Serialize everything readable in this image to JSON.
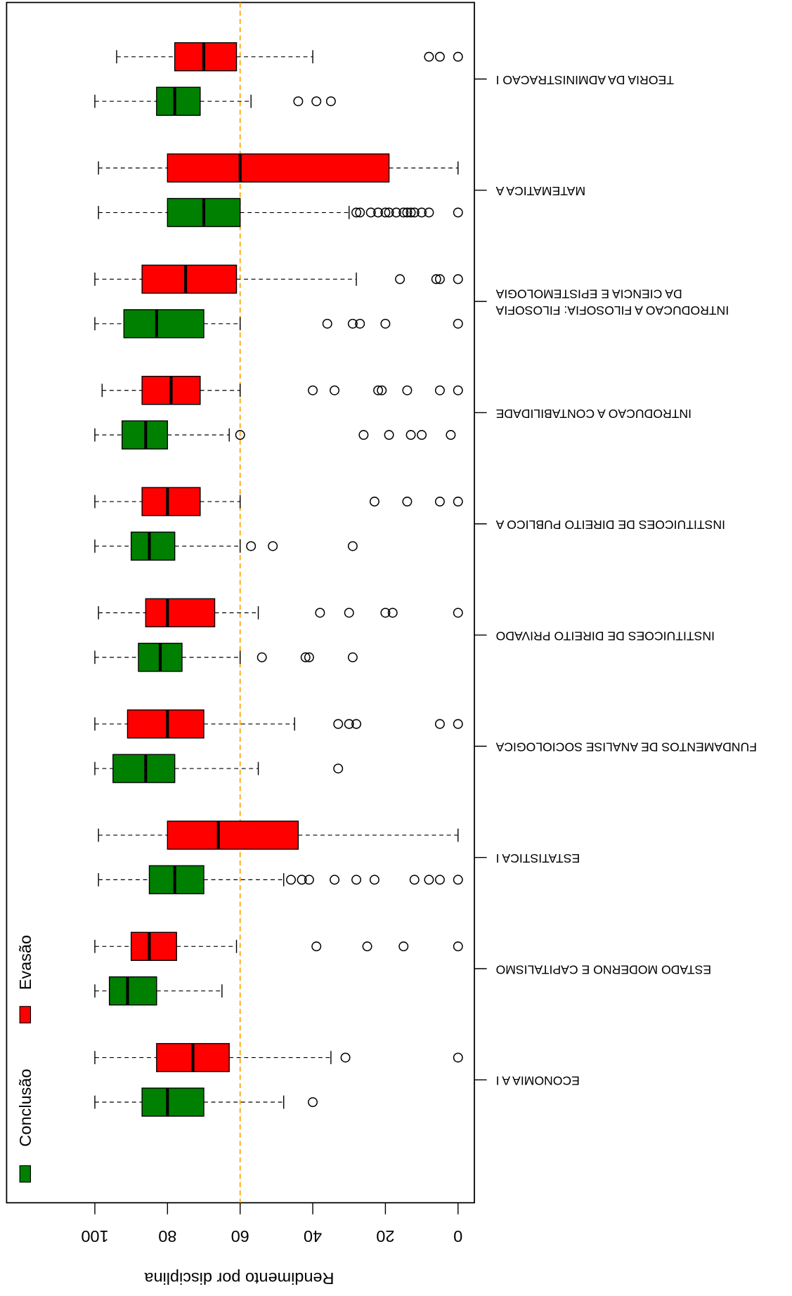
{
  "chart_data": {
    "type": "boxplot",
    "ylabel": "Rendimento por disciplina",
    "categories": [
      "ECONOMIA A I",
      "ESTADO MODERNO E CAPITALISMO",
      "ESTATISTICA I",
      "FUNDAMENTOS DE ANALISE SOCIOLOGICA",
      "INSTITUICOES DE DIREITO PRIVADO",
      "INSTITUICOES DE DIREITO PUBLICO A",
      "INTRODUCAO A CONTABILIDADE",
      "INTRODUCAO A FILOSOFIA: FILOSOFIA\nDA CIENCIA E EPISTEMOLOGIA",
      "MATEMATICA A",
      "TEORIA DA ADMINISTRACAO I"
    ],
    "ylim": [
      -4.5,
      124.3
    ],
    "yticks": [
      0,
      20,
      40,
      60,
      80,
      100
    ],
    "hline": {
      "value": 60,
      "color": "#ffa500"
    },
    "legend": "top-left",
    "series": [
      {
        "name": "Conclusão",
        "color": "#008000",
        "boxes": [
          {
            "whislo": 48,
            "q1": 70,
            "med": 80,
            "q3": 87,
            "whishi": 100,
            "fliers": [
              40
            ]
          },
          {
            "whislo": 65,
            "q1": 83,
            "med": 91,
            "q3": 96,
            "whishi": 100,
            "fliers": []
          },
          {
            "whislo": 48,
            "q1": 70,
            "med": 78,
            "q3": 85,
            "whishi": 99,
            "fliers": [
              46,
              43,
              41,
              34,
              28,
              23,
              12,
              8,
              5,
              0
            ]
          },
          {
            "whislo": 55,
            "q1": 78,
            "med": 86,
            "q3": 95,
            "whishi": 100,
            "fliers": [
              33
            ]
          },
          {
            "whislo": 60,
            "q1": 76,
            "med": 82,
            "q3": 88,
            "whishi": 100,
            "fliers": [
              54,
              42,
              41,
              29
            ]
          },
          {
            "whislo": 60,
            "q1": 78,
            "med": 85,
            "q3": 90,
            "whishi": 100,
            "fliers": [
              57,
              51,
              29
            ]
          },
          {
            "whislo": 63,
            "q1": 80,
            "med": 86,
            "q3": 92.5,
            "whishi": 100,
            "fliers": [
              60,
              26,
              19,
              13,
              10,
              2
            ]
          },
          {
            "whislo": 60,
            "q1": 70,
            "med": 83,
            "q3": 92,
            "whishi": 100,
            "fliers": [
              36,
              29,
              27,
              20,
              0
            ]
          },
          {
            "whislo": 30,
            "q1": 60,
            "med": 70,
            "q3": 80,
            "whishi": 99,
            "fliers": [
              28,
              27,
              24,
              22,
              20,
              19,
              17,
              15,
              14,
              13,
              12,
              10,
              8,
              0
            ]
          },
          {
            "whislo": 57,
            "q1": 71,
            "med": 78,
            "q3": 83,
            "whishi": 100,
            "fliers": [
              44,
              39,
              35
            ]
          }
        ]
      },
      {
        "name": "Evasão",
        "color": "#ff0000",
        "boxes": [
          {
            "whislo": 35,
            "q1": 63,
            "med": 73,
            "q3": 83,
            "whishi": 100,
            "fliers": [
              31,
              0
            ]
          },
          {
            "whislo": 61,
            "q1": 77.5,
            "med": 85,
            "q3": 90,
            "whishi": 100,
            "fliers": [
              39,
              25,
              15,
              0
            ]
          },
          {
            "whislo": 0,
            "q1": 44,
            "med": 66,
            "q3": 80,
            "whishi": 99,
            "fliers": []
          },
          {
            "whislo": 45,
            "q1": 70,
            "med": 80,
            "q3": 91,
            "whishi": 100,
            "fliers": [
              33,
              30,
              28,
              5,
              0
            ]
          },
          {
            "whislo": 55,
            "q1": 67,
            "med": 80,
            "q3": 86,
            "whishi": 99,
            "fliers": [
              38,
              30,
              20,
              18,
              0
            ]
          },
          {
            "whislo": 60,
            "q1": 71,
            "med": 80,
            "q3": 87,
            "whishi": 100,
            "fliers": [
              23,
              14,
              5,
              0
            ]
          },
          {
            "whislo": 60,
            "q1": 71,
            "med": 79,
            "q3": 87,
            "whishi": 98,
            "fliers": [
              40,
              34,
              22,
              21,
              14,
              5,
              0
            ]
          },
          {
            "whislo": 28,
            "q1": 61,
            "med": 75,
            "q3": 87,
            "whishi": 100,
            "fliers": [
              16,
              6,
              5,
              0
            ]
          },
          {
            "whislo": 0,
            "q1": 19,
            "med": 60,
            "q3": 80,
            "whishi": 99,
            "fliers": []
          },
          {
            "whislo": 40,
            "q1": 61,
            "med": 70,
            "q3": 78,
            "whishi": 94,
            "fliers": [
              8,
              5,
              0
            ]
          }
        ]
      }
    ]
  }
}
